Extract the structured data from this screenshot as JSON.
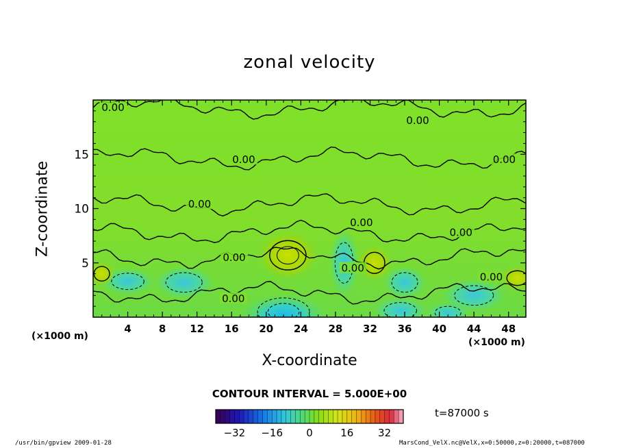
{
  "chart_data": {
    "type": "heatmap",
    "title": "zonal velocity",
    "xlabel": "X-coordinate",
    "ylabel": "Z-coordinate",
    "x_unit_left": "(×1000 m)",
    "x_unit_right": "(×1000 m)",
    "xlim": [
      0,
      50
    ],
    "ylim": [
      0,
      20
    ],
    "xticks": [
      "4",
      "8",
      "12",
      "16",
      "20",
      "24",
      "28",
      "32",
      "36",
      "40",
      "44",
      "48"
    ],
    "xtick_values": [
      4,
      8,
      12,
      16,
      20,
      24,
      28,
      32,
      36,
      40,
      44,
      48
    ],
    "yticks": [
      "5",
      "10",
      "15"
    ],
    "ytick_values": [
      5,
      10,
      15
    ],
    "contour_interval_text": "CONTOUR INTERVAL = 5.000E+00",
    "contour_labels": [
      "0.00",
      "0.00",
      "0.00",
      "0.00",
      "0.00",
      "0.00",
      "0.00",
      "0.00",
      "0.00",
      "0.00",
      "0.00"
    ],
    "contour_label_positions": [
      [
        2.3,
        19.3
      ],
      [
        37.5,
        18.1
      ],
      [
        17.4,
        14.5
      ],
      [
        47.5,
        14.5
      ],
      [
        12.3,
        10.4
      ],
      [
        31.0,
        8.7
      ],
      [
        42.5,
        7.8
      ],
      [
        16.3,
        5.5
      ],
      [
        30.0,
        4.5
      ],
      [
        46.0,
        3.7
      ],
      [
        16.2,
        1.7
      ]
    ],
    "colorbar": {
      "ticks": [
        "−32",
        "−16",
        "0",
        "16",
        "32"
      ],
      "tick_values": [
        -32,
        -16,
        0,
        16,
        32
      ],
      "range": [
        -40,
        40
      ]
    },
    "time_text": "t=87000 s",
    "features": [
      {
        "x": 22.5,
        "z": 5.7,
        "rx": 2.8,
        "rz": 1.8,
        "value": 10
      },
      {
        "x": 32.5,
        "z": 5.0,
        "rx": 1.6,
        "rz": 1.3,
        "value": 6
      },
      {
        "x": 22.0,
        "z": 0.5,
        "rx": 4.0,
        "rz": 1.7,
        "value": -14
      },
      {
        "x": 29.0,
        "z": 5.0,
        "rx": 1.4,
        "rz": 2.5,
        "value": -5
      },
      {
        "x": 10.5,
        "z": 3.2,
        "rx": 2.8,
        "rz": 1.2,
        "value": -5
      },
      {
        "x": 4.0,
        "z": 3.3,
        "rx": 2.5,
        "rz": 1.0,
        "value": -4
      },
      {
        "x": 36.0,
        "z": 3.2,
        "rx": 2.0,
        "rz": 1.2,
        "value": -5
      },
      {
        "x": 44.0,
        "z": 2.0,
        "rx": 3.0,
        "rz": 1.2,
        "value": -5
      },
      {
        "x": 49.0,
        "z": 3.6,
        "rx": 1.6,
        "rz": 0.9,
        "value": 6
      },
      {
        "x": 1.0,
        "z": 4.0,
        "rx": 1.2,
        "rz": 0.9,
        "value": 5
      },
      {
        "x": 35.5,
        "z": 0.6,
        "rx": 2.5,
        "rz": 1.0,
        "value": -6
      },
      {
        "x": 41.0,
        "z": 0.4,
        "rx": 2.0,
        "rz": 0.8,
        "value": -4
      }
    ]
  },
  "footer": {
    "left": "/usr/bin/gpview  2009-01-28",
    "right": "MarsCond_VelX.nc@VelX,x=0:50000,z=0:20000,t=087000"
  }
}
